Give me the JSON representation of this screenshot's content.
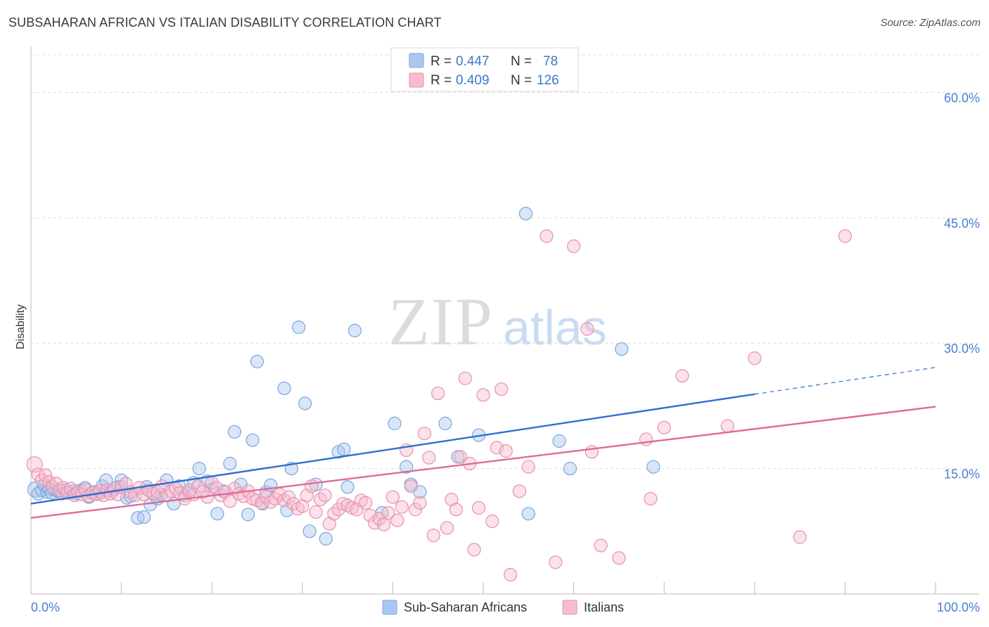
{
  "title": "SUBSAHARAN AFRICAN VS ITALIAN DISABILITY CORRELATION CHART",
  "source": "Source: ZipAtlas.com",
  "watermark": {
    "part1": "ZIP",
    "part2": "atlas"
  },
  "legend_top": {
    "rows": [
      {
        "r_label": "R = ",
        "r_value": "0.447",
        "n_label": "N = ",
        "n_value": "78",
        "color": "#a9c8f0",
        "stroke": "#7aa6dc"
      },
      {
        "r_label": "R = ",
        "r_value": "0.409",
        "n_label": "N = ",
        "n_value": "126",
        "color": "#f7bcd0",
        "stroke": "#e890ad"
      }
    ]
  },
  "chart_data": {
    "type": "scatter",
    "title": "SUBSAHARAN AFRICAN VS ITALIAN DISABILITY CORRELATION CHART",
    "xlabel": "",
    "ylabel": "Disability",
    "xlim": [
      0,
      100
    ],
    "ylim": [
      0,
      65
    ],
    "x_tick_labels": [
      "0.0%",
      "100.0%"
    ],
    "y_ticks": [
      15,
      30,
      45,
      60
    ],
    "y_tick_labels": [
      "15.0%",
      "30.0%",
      "45.0%",
      "60.0%"
    ],
    "grid": "horizontal dashed",
    "legend_position": "bottom-center",
    "series": [
      {
        "name": "Sub-Saharan Africans",
        "color": "#7aa6dc",
        "fill": "#a9c8f0",
        "line_color": "#2f6fce",
        "trend": {
          "x0": 0,
          "y0": 10.8,
          "x1": 80,
          "y1": 23.9,
          "extend_to": 100,
          "extend_y": 27.1
        },
        "points": [
          [
            0.5,
            12.5
          ],
          [
            0.8,
            12.0
          ],
          [
            1.2,
            12.4
          ],
          [
            1.5,
            13.0
          ],
          [
            1.8,
            12.2
          ],
          [
            2.0,
            12.6
          ],
          [
            2.3,
            12.1
          ],
          [
            2.6,
            12.5
          ],
          [
            3.0,
            12.3
          ],
          [
            3.4,
            12.0
          ],
          [
            3.8,
            12.4
          ],
          [
            4.2,
            12.1
          ],
          [
            4.6,
            12.3
          ],
          [
            5.0,
            12.0
          ],
          [
            5.5,
            12.4
          ],
          [
            6.0,
            12.7
          ],
          [
            6.4,
            11.6
          ],
          [
            7.0,
            12.2
          ],
          [
            7.6,
            12.0
          ],
          [
            7.9,
            12.9
          ],
          [
            8.3,
            13.6
          ],
          [
            9.0,
            12.3
          ],
          [
            9.6,
            12.8
          ],
          [
            10.0,
            13.6
          ],
          [
            10.6,
            11.5
          ],
          [
            11.0,
            11.7
          ],
          [
            11.8,
            9.1
          ],
          [
            12.5,
            9.2
          ],
          [
            12.8,
            12.8
          ],
          [
            13.2,
            10.7
          ],
          [
            14.0,
            11.4
          ],
          [
            14.4,
            11.9
          ],
          [
            15.0,
            13.6
          ],
          [
            15.8,
            10.8
          ],
          [
            16.4,
            12.9
          ],
          [
            17.0,
            11.8
          ],
          [
            17.5,
            12.1
          ],
          [
            18.0,
            13.3
          ],
          [
            18.6,
            15.0
          ],
          [
            19.5,
            13.5
          ],
          [
            20.0,
            12.5
          ],
          [
            20.6,
            9.6
          ],
          [
            21.3,
            12.3
          ],
          [
            22.0,
            15.6
          ],
          [
            22.5,
            19.4
          ],
          [
            23.2,
            13.1
          ],
          [
            24.0,
            9.5
          ],
          [
            24.5,
            18.4
          ],
          [
            25.0,
            27.8
          ],
          [
            25.6,
            10.8
          ],
          [
            26.0,
            12.2
          ],
          [
            26.5,
            13.0
          ],
          [
            28.0,
            24.6
          ],
          [
            28.3,
            10.0
          ],
          [
            28.8,
            15.0
          ],
          [
            29.6,
            31.9
          ],
          [
            30.3,
            22.8
          ],
          [
            30.8,
            7.5
          ],
          [
            31.5,
            13.1
          ],
          [
            32.6,
            6.6
          ],
          [
            34.0,
            17.0
          ],
          [
            34.6,
            17.3
          ],
          [
            35.0,
            12.8
          ],
          [
            35.8,
            31.5
          ],
          [
            38.8,
            9.7
          ],
          [
            40.2,
            20.4
          ],
          [
            41.5,
            15.2
          ],
          [
            42.0,
            13.1
          ],
          [
            43.0,
            12.2
          ],
          [
            45.8,
            20.4
          ],
          [
            47.2,
            16.4
          ],
          [
            49.5,
            19.0
          ],
          [
            54.7,
            45.5
          ],
          [
            55.0,
            9.6
          ],
          [
            58.4,
            18.3
          ],
          [
            59.6,
            15.0
          ],
          [
            65.3,
            29.3
          ],
          [
            68.8,
            15.2
          ]
        ]
      },
      {
        "name": "Italians",
        "color": "#e890ad",
        "fill": "#f7bcd0",
        "line_color": "#e06a96",
        "trend": {
          "x0": 0,
          "y0": 9.1,
          "x1": 100,
          "y1": 22.4
        },
        "points": [
          [
            0.4,
            15.5
          ],
          [
            0.8,
            14.3
          ],
          [
            1.2,
            13.6
          ],
          [
            1.6,
            14.2
          ],
          [
            2.0,
            13.4
          ],
          [
            2.4,
            12.8
          ],
          [
            2.8,
            13.2
          ],
          [
            3.2,
            12.4
          ],
          [
            3.6,
            12.7
          ],
          [
            4.0,
            12.1
          ],
          [
            4.4,
            12.6
          ],
          [
            4.8,
            11.8
          ],
          [
            5.2,
            12.2
          ],
          [
            5.6,
            11.9
          ],
          [
            6.0,
            12.5
          ],
          [
            6.4,
            11.7
          ],
          [
            6.8,
            12.1
          ],
          [
            7.2,
            11.9
          ],
          [
            7.6,
            12.3
          ],
          [
            8.0,
            11.8
          ],
          [
            8.4,
            12.4
          ],
          [
            8.8,
            12.0
          ],
          [
            9.2,
            12.6
          ],
          [
            9.6,
            11.9
          ],
          [
            10.0,
            12.8
          ],
          [
            10.5,
            13.2
          ],
          [
            11.0,
            12.2
          ],
          [
            11.5,
            11.8
          ],
          [
            12.0,
            12.7
          ],
          [
            12.5,
            11.9
          ],
          [
            13.0,
            12.4
          ],
          [
            13.5,
            12.0
          ],
          [
            14.0,
            12.2
          ],
          [
            14.5,
            12.9
          ],
          [
            15.0,
            11.8
          ],
          [
            15.5,
            12.3
          ],
          [
            16.0,
            12.6
          ],
          [
            16.5,
            12.1
          ],
          [
            17.0,
            11.4
          ],
          [
            17.5,
            12.4
          ],
          [
            18.0,
            11.9
          ],
          [
            18.5,
            12.9
          ],
          [
            19.0,
            12.2
          ],
          [
            19.5,
            11.6
          ],
          [
            20.0,
            13.3
          ],
          [
            20.5,
            12.7
          ],
          [
            21.0,
            11.8
          ],
          [
            21.5,
            12.2
          ],
          [
            22.0,
            11.1
          ],
          [
            22.5,
            12.6
          ],
          [
            23.0,
            12.0
          ],
          [
            23.5,
            11.7
          ],
          [
            24.0,
            12.3
          ],
          [
            24.5,
            11.4
          ],
          [
            25.0,
            11.2
          ],
          [
            25.5,
            10.9
          ],
          [
            26.0,
            11.6
          ],
          [
            26.5,
            11.0
          ],
          [
            27.0,
            11.4
          ],
          [
            27.5,
            11.9
          ],
          [
            28.0,
            11.2
          ],
          [
            28.5,
            11.6
          ],
          [
            29.0,
            10.8
          ],
          [
            29.5,
            10.2
          ],
          [
            30.0,
            10.5
          ],
          [
            30.5,
            11.8
          ],
          [
            31.0,
            12.9
          ],
          [
            31.5,
            9.8
          ],
          [
            32.0,
            11.3
          ],
          [
            32.5,
            11.8
          ],
          [
            33.0,
            8.4
          ],
          [
            33.5,
            9.6
          ],
          [
            34.0,
            10.1
          ],
          [
            34.5,
            10.8
          ],
          [
            35.0,
            10.6
          ],
          [
            35.5,
            10.3
          ],
          [
            36.0,
            10.1
          ],
          [
            36.5,
            11.2
          ],
          [
            37.0,
            10.9
          ],
          [
            37.5,
            9.4
          ],
          [
            38.0,
            8.5
          ],
          [
            38.5,
            9.0
          ],
          [
            39.0,
            8.3
          ],
          [
            39.5,
            9.7
          ],
          [
            40.0,
            11.6
          ],
          [
            40.5,
            8.8
          ],
          [
            41.0,
            10.4
          ],
          [
            41.5,
            17.2
          ],
          [
            42.0,
            12.9
          ],
          [
            42.5,
            10.1
          ],
          [
            43.0,
            10.9
          ],
          [
            43.5,
            19.2
          ],
          [
            44.0,
            16.3
          ],
          [
            44.5,
            7.0
          ],
          [
            45.0,
            24.0
          ],
          [
            46.0,
            7.9
          ],
          [
            46.5,
            11.3
          ],
          [
            47.0,
            10.1
          ],
          [
            47.5,
            16.4
          ],
          [
            48.0,
            25.8
          ],
          [
            48.5,
            15.6
          ],
          [
            49.0,
            5.3
          ],
          [
            49.5,
            10.3
          ],
          [
            50.0,
            23.8
          ],
          [
            51.0,
            8.7
          ],
          [
            51.5,
            17.5
          ],
          [
            52.0,
            24.5
          ],
          [
            52.5,
            17.1
          ],
          [
            53.0,
            2.3
          ],
          [
            54.0,
            12.3
          ],
          [
            55.0,
            15.2
          ],
          [
            57.0,
            42.8
          ],
          [
            58.0,
            3.8
          ],
          [
            60.0,
            41.6
          ],
          [
            61.5,
            31.7
          ],
          [
            62.0,
            17.0
          ],
          [
            63.0,
            5.8
          ],
          [
            65.0,
            4.3
          ],
          [
            68.0,
            18.5
          ],
          [
            68.5,
            11.4
          ],
          [
            70.0,
            19.9
          ],
          [
            72.0,
            26.1
          ],
          [
            77.0,
            20.1
          ],
          [
            80.0,
            28.2
          ],
          [
            85.0,
            6.8
          ],
          [
            90.0,
            42.8
          ]
        ]
      }
    ]
  },
  "legend_bottom": [
    {
      "label": "Sub-Saharan Africans",
      "color": "#a9c8f0",
      "stroke": "#7aa6dc"
    },
    {
      "label": "Italians",
      "color": "#f7bcd0",
      "stroke": "#e890ad"
    }
  ]
}
